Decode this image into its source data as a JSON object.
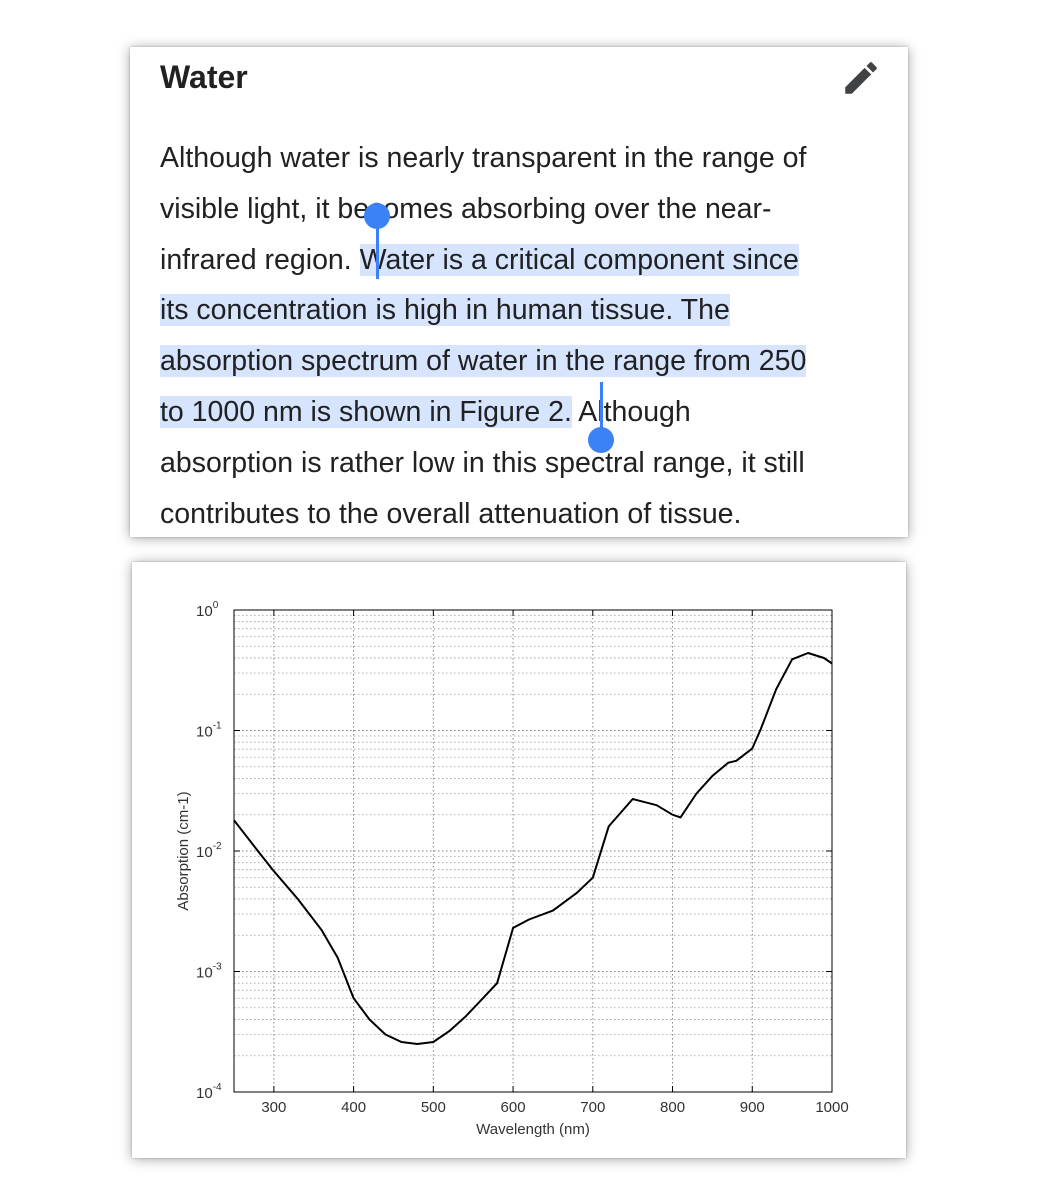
{
  "section": {
    "title": "Water",
    "edit_icon": "pencil-icon",
    "selection_color": "#d6e4fd",
    "handle_color": "#3b82f6",
    "paragraph_lines": [
      {
        "pre": "Although water is nearly transparent in the range of",
        "sel": "",
        "post": ""
      },
      {
        "pre": "visible light, it becomes absorbing over the near-",
        "sel": "",
        "post": ""
      },
      {
        "pre": "infrared region. ",
        "sel": "Water is a critical component since",
        "post": ""
      },
      {
        "pre": "",
        "sel": "its concentration is high in human tissue. The",
        "post": ""
      },
      {
        "pre": "",
        "sel": "absorption spectrum of water in the range from 250",
        "post": ""
      },
      {
        "pre": "",
        "sel": "to 1000 nm is shown in Figure 2.",
        "post": " Although"
      },
      {
        "pre": "absorption is rather low in this spectral range, it still",
        "sel": "",
        "post": ""
      },
      {
        "pre": "contributes to the overall attenuation of tissue.",
        "sel": "",
        "post": ""
      }
    ]
  },
  "chart_data": {
    "type": "line",
    "title": "",
    "xlabel": "Wavelength (nm)",
    "ylabel": "Absorption (cm-1)",
    "xscale": "linear",
    "yscale": "log",
    "xlim": [
      250,
      1000
    ],
    "ylim": [
      0.0001,
      1
    ],
    "grid": true,
    "x_ticks": [
      300,
      400,
      500,
      600,
      700,
      800,
      900,
      1000
    ],
    "y_ticks": [
      {
        "base": "10",
        "exp": "0",
        "value": 1
      },
      {
        "base": "10",
        "exp": "-1",
        "value": 0.1
      },
      {
        "base": "10",
        "exp": "-2",
        "value": 0.01
      },
      {
        "base": "10",
        "exp": "-3",
        "value": 0.001
      },
      {
        "base": "10",
        "exp": "-4",
        "value": 0.0001
      }
    ],
    "series": [
      {
        "x": [
          250,
          280,
          300,
          330,
          360,
          380,
          400,
          420,
          440,
          460,
          480,
          500,
          520,
          540,
          560,
          580,
          600,
          620,
          650,
          680,
          700,
          720,
          750,
          780,
          800,
          810,
          830,
          850,
          870,
          880,
          900,
          910,
          930,
          950,
          970,
          990,
          1000
        ],
        "y": [
          0.018,
          0.01,
          0.0068,
          0.004,
          0.0022,
          0.0013,
          0.0006,
          0.0004,
          0.0003,
          0.00026,
          0.00025,
          0.00026,
          0.00032,
          0.00042,
          0.00058,
          0.0008,
          0.0023,
          0.0027,
          0.0032,
          0.0045,
          0.006,
          0.016,
          0.027,
          0.024,
          0.02,
          0.019,
          0.03,
          0.042,
          0.054,
          0.056,
          0.071,
          0.1,
          0.22,
          0.39,
          0.44,
          0.4,
          0.36
        ]
      }
    ]
  }
}
